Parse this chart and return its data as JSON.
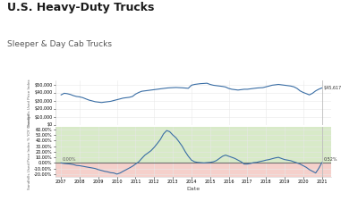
{
  "title": "U.S. Heavy-Duty Trucks",
  "subtitle": "Sleeper & Day Cab Trucks",
  "title_fontsize": 9,
  "subtitle_fontsize": 6.5,
  "background_color": "#ffffff",
  "line_color": "#3a6ea5",
  "line_width": 0.8,
  "xlabel": "Date",
  "ylabel_top": "Sandhills Used Price Index",
  "ylabel_bottom": "Sandhills Used Price Index % YOY Change",
  "green_band_color": "#d8eac8",
  "red_band_color": "#f5d0cb",
  "zero_line_color": "#707070",
  "grid_color": "#e8e8e8",
  "annotation_end_price": "$45,617",
  "annotation_end_pct": "0.52%",
  "annotation_start_pct": "0.00%",
  "price_data_x": [
    2007.0,
    2007.17,
    2007.33,
    2007.5,
    2007.67,
    2007.83,
    2008.0,
    2008.17,
    2008.33,
    2008.5,
    2008.67,
    2008.83,
    2009.0,
    2009.17,
    2009.33,
    2009.5,
    2009.67,
    2009.83,
    2010.0,
    2010.17,
    2010.33,
    2010.5,
    2010.67,
    2010.83,
    2011.0,
    2011.17,
    2011.33,
    2011.5,
    2011.67,
    2011.83,
    2012.0,
    2012.17,
    2012.33,
    2012.5,
    2012.67,
    2012.83,
    2013.0,
    2013.17,
    2013.33,
    2013.5,
    2013.67,
    2013.83,
    2014.0,
    2014.17,
    2014.33,
    2014.5,
    2014.67,
    2014.83,
    2015.0,
    2015.17,
    2015.33,
    2015.5,
    2015.67,
    2015.83,
    2016.0,
    2016.17,
    2016.33,
    2016.5,
    2016.67,
    2016.83,
    2017.0,
    2017.17,
    2017.33,
    2017.5,
    2017.67,
    2017.83,
    2018.0,
    2018.17,
    2018.33,
    2018.5,
    2018.67,
    2018.83,
    2019.0,
    2019.17,
    2019.33,
    2019.5,
    2019.67,
    2019.83,
    2020.0,
    2020.17,
    2020.33,
    2020.5,
    2020.67,
    2020.83,
    2021.0
  ],
  "price_data_y": [
    37000,
    39000,
    38500,
    37500,
    36000,
    35000,
    34500,
    33500,
    32000,
    30500,
    29500,
    28500,
    28000,
    27500,
    28000,
    28500,
    29000,
    30000,
    31000,
    32000,
    33000,
    33500,
    34000,
    35000,
    38000,
    40000,
    41500,
    42000,
    42500,
    43000,
    43500,
    44000,
    44500,
    45000,
    45500,
    45800,
    46000,
    46200,
    46000,
    45800,
    45500,
    45200,
    49000,
    50000,
    50500,
    51000,
    51200,
    51500,
    50000,
    49000,
    48500,
    48000,
    47500,
    46800,
    45000,
    44000,
    43500,
    43000,
    43500,
    44000,
    44000,
    44500,
    45000,
    45500,
    45800,
    46000,
    47000,
    48000,
    49000,
    49500,
    50000,
    49500,
    49000,
    48500,
    48000,
    47000,
    45000,
    42000,
    40000,
    38500,
    37000,
    39000,
    42000,
    44000,
    45617
  ],
  "pct_data_x": [
    2007.0,
    2007.17,
    2007.33,
    2007.5,
    2007.67,
    2007.83,
    2008.0,
    2008.17,
    2008.33,
    2008.5,
    2008.67,
    2008.83,
    2009.0,
    2009.17,
    2009.33,
    2009.5,
    2009.67,
    2009.83,
    2010.0,
    2010.17,
    2010.33,
    2010.5,
    2010.67,
    2010.83,
    2011.0,
    2011.17,
    2011.33,
    2011.5,
    2011.67,
    2011.83,
    2012.0,
    2012.17,
    2012.33,
    2012.5,
    2012.67,
    2012.83,
    2013.0,
    2013.17,
    2013.33,
    2013.5,
    2013.67,
    2013.83,
    2014.0,
    2014.17,
    2014.33,
    2014.5,
    2014.67,
    2014.83,
    2015.0,
    2015.17,
    2015.33,
    2015.5,
    2015.67,
    2015.83,
    2016.0,
    2016.17,
    2016.33,
    2016.5,
    2016.67,
    2016.83,
    2017.0,
    2017.17,
    2017.33,
    2017.5,
    2017.67,
    2017.83,
    2018.0,
    2018.17,
    2018.33,
    2018.5,
    2018.67,
    2018.83,
    2019.0,
    2019.17,
    2019.33,
    2019.5,
    2019.67,
    2019.83,
    2020.0,
    2020.17,
    2020.33,
    2020.5,
    2020.67,
    2020.83,
    2021.0
  ],
  "pct_data_y": [
    0.0,
    -1.0,
    -1.5,
    -2.0,
    -3.0,
    -4.5,
    -5.0,
    -6.0,
    -7.0,
    -8.0,
    -9.0,
    -10.0,
    -12.0,
    -13.5,
    -15.0,
    -16.0,
    -17.5,
    -18.0,
    -20.0,
    -18.0,
    -15.0,
    -12.0,
    -9.0,
    -6.0,
    -2.0,
    2.0,
    8.0,
    14.0,
    18.0,
    22.0,
    28.0,
    35.0,
    42.0,
    52.0,
    58.0,
    56.0,
    50.0,
    45.0,
    38.0,
    30.0,
    20.0,
    12.0,
    5.0,
    2.0,
    1.0,
    0.5,
    0.0,
    0.5,
    1.0,
    2.0,
    4.0,
    8.0,
    12.0,
    14.0,
    12.0,
    10.0,
    8.0,
    5.0,
    2.0,
    -2.0,
    -2.0,
    -1.0,
    0.5,
    1.0,
    2.5,
    3.5,
    5.0,
    6.0,
    7.5,
    9.0,
    10.0,
    8.0,
    6.0,
    5.0,
    4.0,
    2.0,
    0.0,
    -2.0,
    -5.0,
    -8.0,
    -12.0,
    -15.0,
    -18.0,
    -10.0,
    0.52
  ],
  "price_yticks": [
    0,
    10000,
    20000,
    30000,
    40000,
    50000
  ],
  "pct_yticks": [
    -20,
    -10,
    0,
    10,
    20,
    30,
    40,
    50,
    60
  ],
  "xlim_min": 2006.7,
  "xlim_max": 2021.5,
  "price_ylim": [
    0,
    55000
  ],
  "pct_ylim": [
    -25,
    65
  ]
}
